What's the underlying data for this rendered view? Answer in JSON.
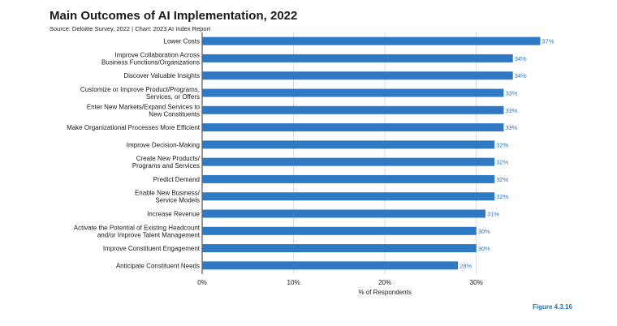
{
  "header": {
    "title": "Main Outcomes of AI Implementation, 2022",
    "source": "Source: Deloitte Survey, 2022 | Chart: 2023 AI Index Report"
  },
  "figure_label": "Figure 4.3.16",
  "colors": {
    "bar": "#2f78c4",
    "value_label": "#2f78c4",
    "grid": "#d9d9d9",
    "axis": "#333333"
  },
  "chart_data": {
    "type": "bar",
    "orientation": "horizontal",
    "categories": [
      [
        "Lower Costs"
      ],
      [
        "Improve Collaboration Across",
        "Business Functions/Organizations"
      ],
      [
        "Discover Valuable Insights"
      ],
      [
        "Customize or Improve Product/Programs,",
        "Services, or Offers"
      ],
      [
        "Enter New Markets/Expand Services to",
        "New Constituents"
      ],
      [
        "Make Organizational Processes More Efficient"
      ],
      [
        "Improve Decision-Making"
      ],
      [
        "Create New Products/",
        "Programs and Services"
      ],
      [
        "Predict Demand"
      ],
      [
        "Enable New Business/",
        "Service Models"
      ],
      [
        "Increase Revenue"
      ],
      [
        "Activate the Potential of Existing Headcount",
        "and/or Improve Talent Management"
      ],
      [
        "Improve Constituent Engagement"
      ],
      [
        "Anticipate Constituent Needs"
      ]
    ],
    "values": [
      37,
      34,
      34,
      33,
      33,
      33,
      32,
      32,
      32,
      32,
      31,
      30,
      30,
      28
    ],
    "value_labels": [
      "37%",
      "34%",
      "34%",
      "33%",
      "33%",
      "33%",
      "32%",
      "32%",
      "32%",
      "32%",
      "31%",
      "30%",
      "30%",
      "28%"
    ],
    "xlim": [
      0,
      39
    ],
    "xticks": [
      0,
      10,
      20,
      30
    ],
    "xtick_labels": [
      "0%",
      "10%",
      "20%",
      "30%"
    ],
    "xlabel": "% of Respondents",
    "grid": true
  }
}
